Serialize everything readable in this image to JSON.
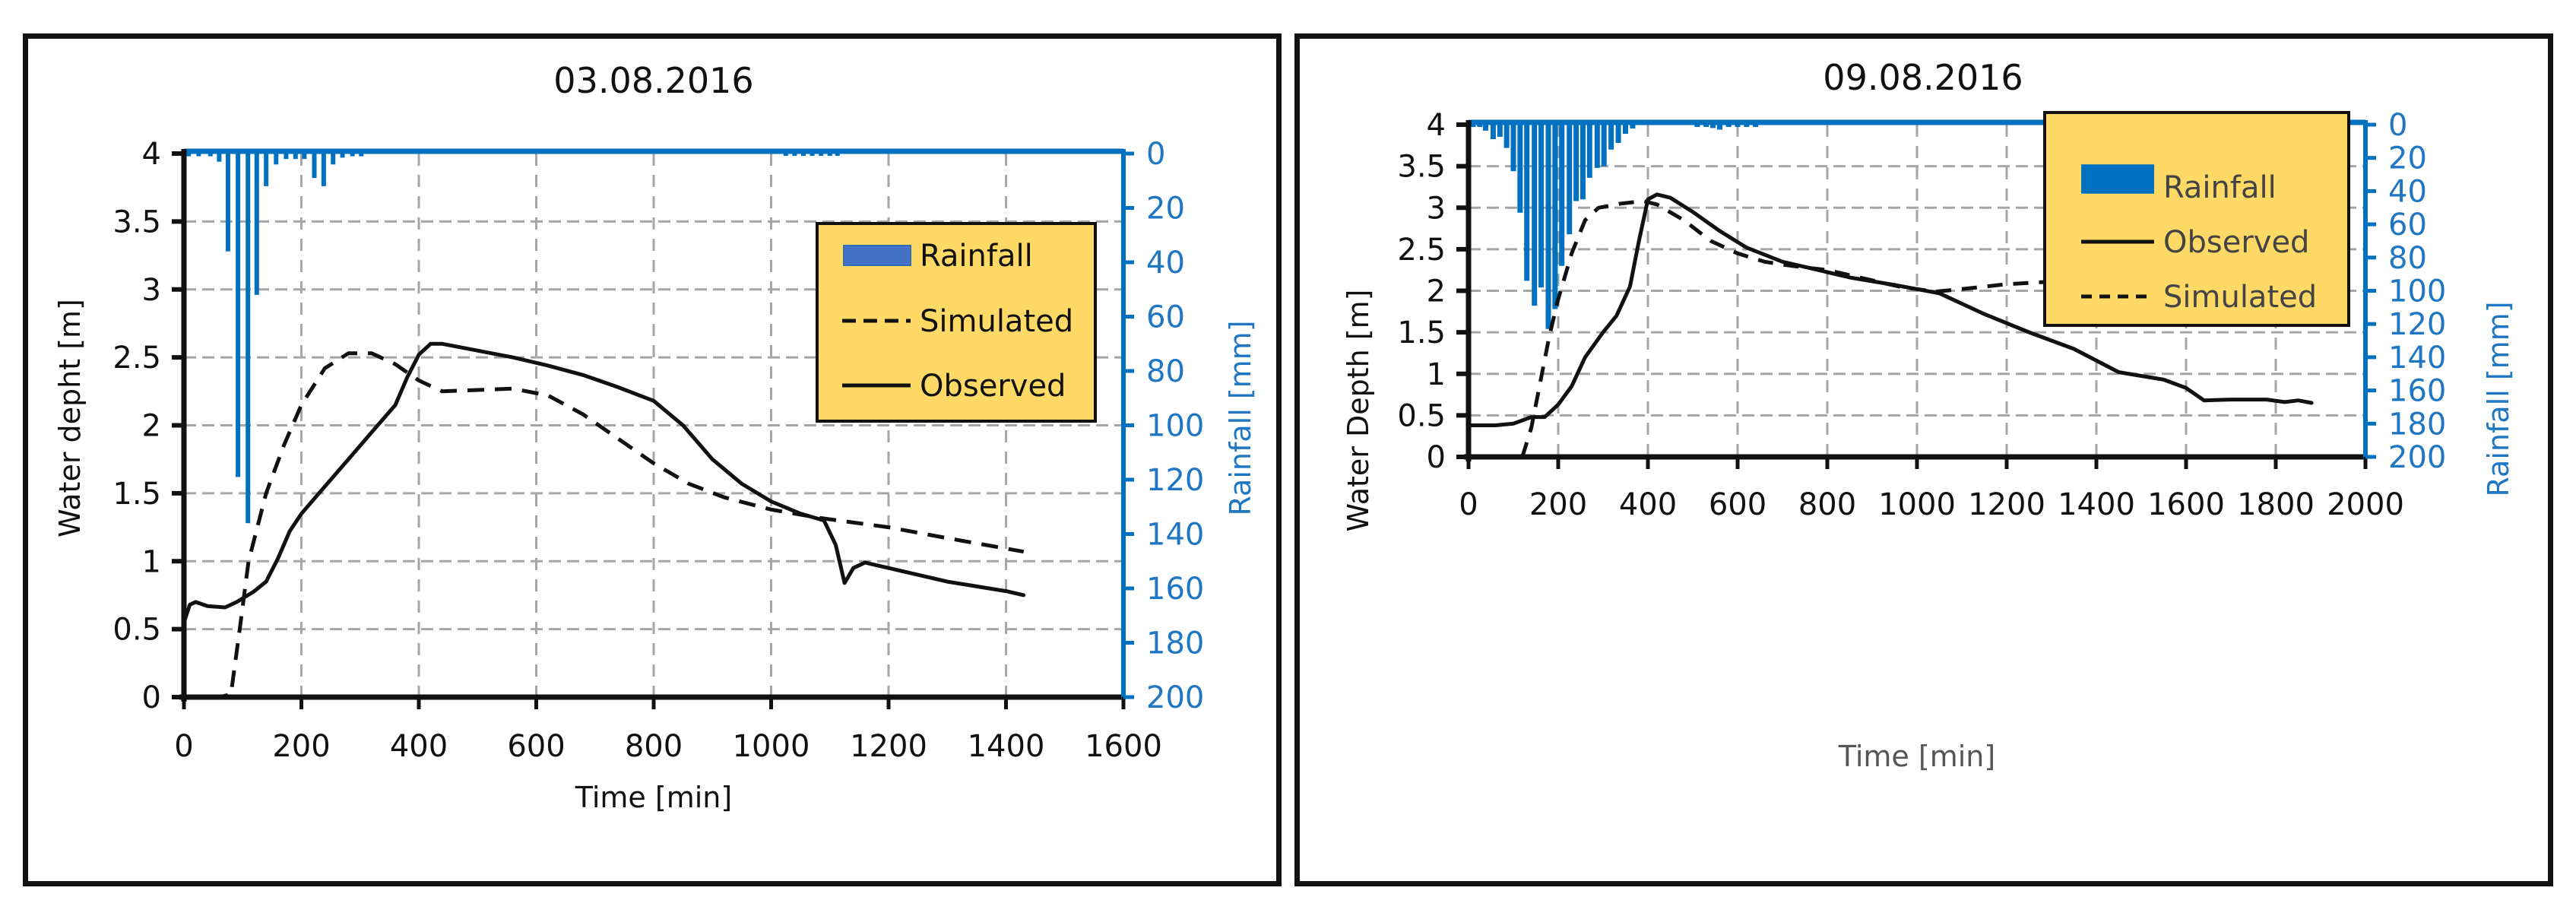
{
  "colors": {
    "rain": "#0070c0",
    "rain_left_legend": "#4472c4",
    "legend_bg": "#ffd966",
    "line": "#111111",
    "grid": "#a6a6a6",
    "rain_axis": "#1f77c4"
  },
  "chart_data": [
    {
      "type": "line",
      "title": "03.08.2016",
      "xlabel": "Time [min]",
      "ylabel": "Water depht [m]",
      "y2label": "Rainfall [mm]",
      "xlim": [
        0,
        1600
      ],
      "ylim": [
        0,
        4
      ],
      "y2lim": [
        200,
        0
      ],
      "y2_inverted": true,
      "x_ticks": [
        "0",
        "200",
        "400",
        "600",
        "800",
        "1000",
        "1200",
        "1400",
        "1600"
      ],
      "y_ticks": [
        "0",
        "0.5",
        "1",
        "1.5",
        "2",
        "2.5",
        "3",
        "3.5",
        "4"
      ],
      "y2_ticks": [
        "0",
        "20",
        "40",
        "60",
        "80",
        "100",
        "120",
        "140",
        "160",
        "180",
        "200"
      ],
      "grid": true,
      "legend_position": "upper-right",
      "legend": [
        "Rainfall",
        "Simulated",
        "Observed"
      ],
      "rainfall": {
        "name": "Rainfall",
        "x": [
          8,
          25,
          45,
          60,
          75,
          92,
          109,
          124,
          140,
          157,
          174,
          190,
          205,
          222,
          238,
          254,
          270,
          287,
          302,
          1025,
          1040,
          1055,
          1070,
          1085,
          1100,
          1113
        ],
        "values": [
          1,
          1,
          1,
          3,
          36,
          119,
          136,
          52,
          12,
          4,
          2,
          2,
          2,
          9,
          12,
          4,
          1.5,
          1,
          1,
          0.5,
          0.5,
          0.5,
          0.5,
          0.5,
          0.5,
          0.5
        ]
      },
      "series": [
        {
          "name": "Simulated",
          "style": "dashed",
          "x": [
            0,
            60,
            80,
            95,
            110,
            140,
            170,
            200,
            240,
            280,
            320,
            360,
            400,
            440,
            500,
            560,
            620,
            680,
            740,
            800,
            860,
            920,
            1000,
            1080,
            1200,
            1300,
            1430
          ],
          "y": [
            0,
            0,
            0.02,
            0.5,
            1.0,
            1.5,
            1.85,
            2.15,
            2.42,
            2.53,
            2.53,
            2.45,
            2.33,
            2.25,
            2.26,
            2.27,
            2.22,
            2.08,
            1.9,
            1.72,
            1.57,
            1.47,
            1.38,
            1.32,
            1.25,
            1.17,
            1.07
          ]
        },
        {
          "name": "Observed",
          "style": "solid",
          "x": [
            0,
            10,
            20,
            40,
            70,
            90,
            120,
            140,
            160,
            180,
            200,
            240,
            280,
            320,
            360,
            380,
            400,
            420,
            440,
            500,
            560,
            620,
            680,
            740,
            800,
            850,
            900,
            950,
            1000,
            1050,
            1090,
            1110,
            1125,
            1140,
            1160,
            1200,
            1300,
            1400,
            1430
          ],
          "y": [
            0.55,
            0.68,
            0.7,
            0.67,
            0.66,
            0.7,
            0.78,
            0.85,
            1.02,
            1.22,
            1.35,
            1.55,
            1.75,
            1.95,
            2.15,
            2.35,
            2.52,
            2.6,
            2.6,
            2.55,
            2.5,
            2.44,
            2.37,
            2.28,
            2.18,
            2.0,
            1.75,
            1.57,
            1.44,
            1.35,
            1.3,
            1.12,
            0.84,
            0.95,
            0.99,
            0.95,
            0.85,
            0.78,
            0.75
          ]
        }
      ]
    },
    {
      "type": "line",
      "title": "09.08.2016",
      "xlabel": "Time [min]",
      "ylabel": "Water Depth [m]",
      "y2label": "Rainfall [mm]",
      "xlim": [
        0,
        2000
      ],
      "ylim": [
        0,
        4
      ],
      "y2lim": [
        200,
        0
      ],
      "y2_inverted": true,
      "x_ticks": [
        "0",
        "200",
        "400",
        "600",
        "800",
        "1000",
        "1200",
        "1400",
        "1600",
        "1800",
        "2000"
      ],
      "y_ticks": [
        "0",
        "0.5",
        "1",
        "1.5",
        "2",
        "2.5",
        "3",
        "3.5",
        "4"
      ],
      "y2_ticks": [
        "0",
        "20",
        "40",
        "60",
        "80",
        "100",
        "120",
        "140",
        "160",
        "180",
        "200"
      ],
      "grid": true,
      "legend_position": "upper-right",
      "legend": [
        "Rainfall",
        "Observed",
        "Simulated"
      ],
      "rainfall": {
        "name": "Rainfall",
        "x": [
          10,
          25,
          38,
          55,
          70,
          85,
          100,
          115,
          130,
          147,
          162,
          178,
          193,
          208,
          225,
          240,
          255,
          270,
          287,
          302,
          318,
          334,
          350,
          366,
          510,
          530,
          545,
          560,
          580,
          600,
          620,
          640,
          1390,
          1410,
          1430,
          1450,
          1550,
          1570,
          1590,
          1610
        ],
        "values": [
          1,
          1,
          3.6,
          8.7,
          7.3,
          14,
          28,
          53,
          94,
          109,
          98,
          123,
          111,
          85,
          66,
          46,
          45,
          32,
          26,
          25,
          15,
          11,
          5.5,
          2.3,
          1,
          1,
          2,
          3,
          1,
          1,
          1,
          1,
          0.5,
          0.5,
          0.5,
          0.5,
          0.5,
          0.5,
          0.5,
          0.5
        ]
      },
      "series": [
        {
          "name": "Observed",
          "style": "solid",
          "x": [
            0,
            60,
            100,
            140,
            170,
            200,
            230,
            260,
            300,
            330,
            360,
            380,
            400,
            420,
            450,
            500,
            560,
            620,
            700,
            780,
            850,
            950,
            1050,
            1150,
            1250,
            1350,
            1450,
            1550,
            1600,
            1640,
            1700,
            1780,
            1820,
            1850,
            1880
          ],
          "y": [
            0.38,
            0.38,
            0.4,
            0.48,
            0.48,
            0.63,
            0.85,
            1.2,
            1.5,
            1.7,
            2.05,
            2.6,
            3.1,
            3.16,
            3.12,
            2.95,
            2.72,
            2.52,
            2.35,
            2.25,
            2.16,
            2.07,
            1.97,
            1.72,
            1.5,
            1.3,
            1.02,
            0.93,
            0.83,
            0.68,
            0.69,
            0.69,
            0.66,
            0.68,
            0.65
          ]
        },
        {
          "name": "Simulated",
          "style": "dashed",
          "x": [
            120,
            140,
            160,
            180,
            200,
            230,
            260,
            290,
            340,
            390,
            420,
            480,
            540,
            600,
            660,
            720,
            800,
            880,
            960,
            1040,
            1100,
            1200,
            1300,
            1400,
            1500,
            1600,
            1700,
            1800,
            1870
          ],
          "y": [
            0.0,
            0.35,
            0.9,
            1.45,
            1.9,
            2.45,
            2.85,
            3.0,
            3.05,
            3.08,
            3.04,
            2.85,
            2.6,
            2.45,
            2.35,
            2.3,
            2.25,
            2.15,
            2.05,
            1.99,
            2.02,
            2.08,
            2.11,
            2.1,
            2.05,
            1.98,
            1.88,
            1.78,
            1.7
          ]
        }
      ]
    }
  ]
}
